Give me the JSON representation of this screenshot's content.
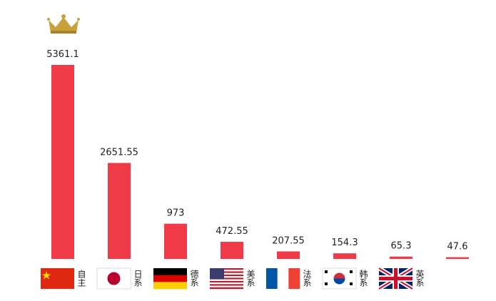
{
  "chart_data": {
    "type": "bar",
    "categories": [
      "自主",
      "日系",
      "德系",
      "美系",
      "法系",
      "韩系",
      "英系",
      null
    ],
    "values": [
      5361.1,
      2651.55,
      973,
      472.55,
      207.55,
      154.3,
      65.3,
      47.6
    ],
    "color": "#f03a47"
  }
}
